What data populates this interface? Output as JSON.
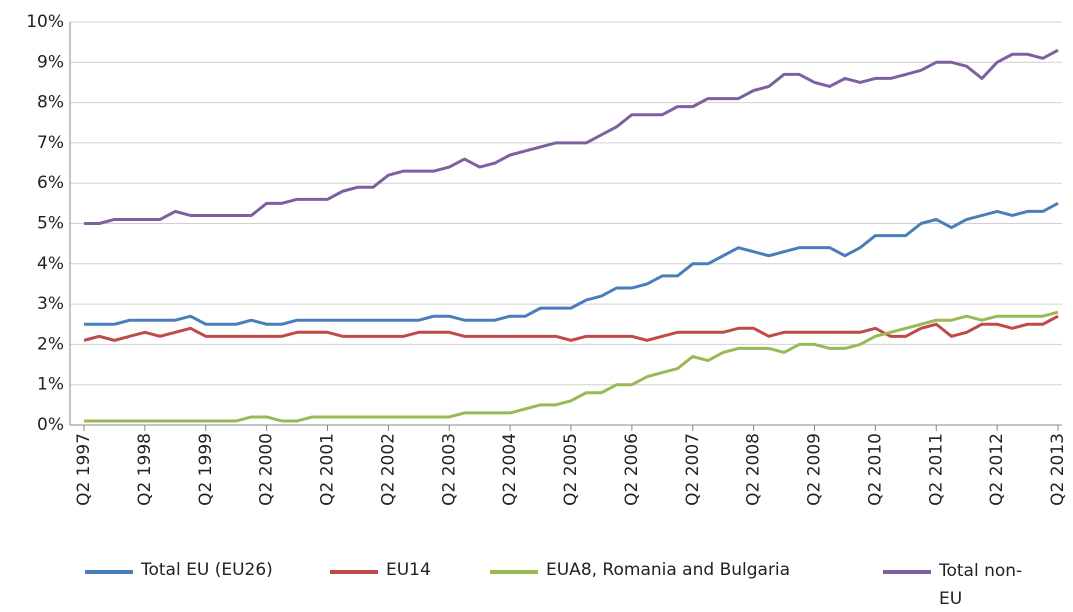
{
  "chart_data": {
    "type": "line",
    "categories": [
      "Q2 1997",
      null,
      null,
      null,
      "Q2 1998",
      null,
      null,
      null,
      "Q2 1999",
      null,
      null,
      null,
      "Q2 2000",
      null,
      null,
      null,
      "Q2 2001",
      null,
      null,
      null,
      "Q2 2002",
      null,
      null,
      null,
      "Q2 2003",
      null,
      null,
      null,
      "Q2 2004",
      null,
      null,
      null,
      "Q2 2005",
      null,
      null,
      null,
      "Q2 2006",
      null,
      null,
      null,
      "Q2 2007",
      null,
      null,
      null,
      "Q2 2008",
      null,
      null,
      null,
      "Q2 2009",
      null,
      null,
      null,
      "Q2 2010",
      null,
      null,
      null,
      "Q2 2011",
      null,
      null,
      null,
      "Q2 2012",
      null,
      null,
      null,
      "Q2 2013"
    ],
    "series": [
      {
        "name": "Total EU (EU26)",
        "color": "#4a7ebb",
        "values": [
          2.5,
          2.5,
          2.5,
          2.6,
          2.6,
          2.6,
          2.6,
          2.7,
          2.5,
          2.5,
          2.5,
          2.6,
          2.5,
          2.5,
          2.6,
          2.6,
          2.6,
          2.6,
          2.6,
          2.6,
          2.6,
          2.6,
          2.6,
          2.7,
          2.7,
          2.6,
          2.6,
          2.6,
          2.7,
          2.7,
          2.9,
          2.9,
          2.9,
          3.1,
          3.2,
          3.4,
          3.4,
          3.5,
          3.7,
          3.7,
          4.0,
          4.0,
          4.2,
          4.4,
          4.3,
          4.2,
          4.3,
          4.4,
          4.4,
          4.4,
          4.2,
          4.4,
          4.7,
          4.7,
          4.7,
          5.0,
          5.1,
          4.9,
          5.1,
          5.2,
          5.3,
          5.2,
          5.3,
          5.3,
          5.5
        ]
      },
      {
        "name": "EU14",
        "color": "#be4b48",
        "values": [
          2.1,
          2.2,
          2.1,
          2.2,
          2.3,
          2.2,
          2.3,
          2.4,
          2.2,
          2.2,
          2.2,
          2.2,
          2.2,
          2.2,
          2.3,
          2.3,
          2.3,
          2.2,
          2.2,
          2.2,
          2.2,
          2.2,
          2.3,
          2.3,
          2.3,
          2.2,
          2.2,
          2.2,
          2.2,
          2.2,
          2.2,
          2.2,
          2.1,
          2.2,
          2.2,
          2.2,
          2.2,
          2.1,
          2.2,
          2.3,
          2.3,
          2.3,
          2.3,
          2.4,
          2.4,
          2.2,
          2.3,
          2.3,
          2.3,
          2.3,
          2.3,
          2.3,
          2.4,
          2.2,
          2.2,
          2.4,
          2.5,
          2.2,
          2.3,
          2.5,
          2.5,
          2.4,
          2.5,
          2.5,
          2.7
        ]
      },
      {
        "name": "EUA8, Romania and Bulgaria",
        "color": "#98b954",
        "values": [
          0.1,
          0.1,
          0.1,
          0.1,
          0.1,
          0.1,
          0.1,
          0.1,
          0.1,
          0.1,
          0.1,
          0.2,
          0.2,
          0.1,
          0.1,
          0.2,
          0.2,
          0.2,
          0.2,
          0.2,
          0.2,
          0.2,
          0.2,
          0.2,
          0.2,
          0.3,
          0.3,
          0.3,
          0.3,
          0.4,
          0.5,
          0.5,
          0.6,
          0.8,
          0.8,
          1.0,
          1.0,
          1.2,
          1.3,
          1.4,
          1.7,
          1.6,
          1.8,
          1.9,
          1.9,
          1.9,
          1.8,
          2.0,
          2.0,
          1.9,
          1.9,
          2.0,
          2.2,
          2.3,
          2.4,
          2.5,
          2.6,
          2.6,
          2.7,
          2.6,
          2.7,
          2.7,
          2.7,
          2.7,
          2.8
        ]
      },
      {
        "name": "Total non-EU",
        "color": "#7d60a0",
        "values": [
          5.0,
          5.0,
          5.1,
          5.1,
          5.1,
          5.1,
          5.3,
          5.2,
          5.2,
          5.2,
          5.2,
          5.2,
          5.5,
          5.5,
          5.6,
          5.6,
          5.6,
          5.8,
          5.9,
          5.9,
          6.2,
          6.3,
          6.3,
          6.3,
          6.4,
          6.6,
          6.4,
          6.5,
          6.7,
          6.8,
          6.9,
          7.0,
          7.0,
          7.0,
          7.2,
          7.4,
          7.7,
          7.7,
          7.7,
          7.9,
          7.9,
          8.1,
          8.1,
          8.1,
          8.3,
          8.4,
          8.7,
          8.7,
          8.5,
          8.4,
          8.6,
          8.5,
          8.6,
          8.6,
          8.7,
          8.8,
          9.0,
          9.0,
          8.9,
          8.6,
          9.0,
          9.2,
          9.2,
          9.1,
          9.3
        ]
      }
    ],
    "ylim": [
      0,
      10
    ],
    "yticks": [
      {
        "value": 0,
        "label": "0%"
      },
      {
        "value": 1,
        "label": "1%"
      },
      {
        "value": 2,
        "label": "2%"
      },
      {
        "value": 3,
        "label": "3%"
      },
      {
        "value": 4,
        "label": "4%"
      },
      {
        "value": 5,
        "label": "5%"
      },
      {
        "value": 6,
        "label": "6%"
      },
      {
        "value": 7,
        "label": "7%"
      },
      {
        "value": 8,
        "label": "8%"
      },
      {
        "value": 9,
        "label": "9%"
      },
      {
        "value": 10,
        "label": "10%"
      }
    ],
    "grid": true,
    "legend": "bottom"
  }
}
